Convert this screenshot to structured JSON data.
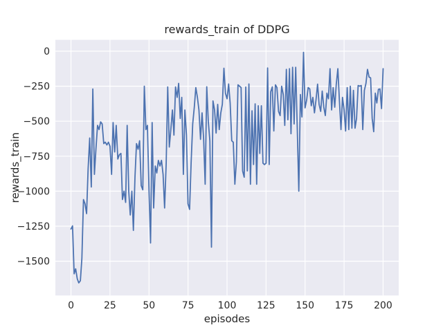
{
  "figure": {
    "title": "rewards_train of DDPG",
    "xlabel": "episodes",
    "ylabel": "rewards_train"
  },
  "style": {
    "figure_background": "#ffffff",
    "axes_background": "#eaeaf2",
    "grid_color": "#ffffff",
    "line_color": "#4c72b0",
    "text_color": "#262626"
  },
  "chart_data": {
    "type": "line",
    "title": "rewards_train of DDPG",
    "xlabel": "episodes",
    "ylabel": "rewards_train",
    "grid": true,
    "legend": "none",
    "xlim": [
      -10,
      210
    ],
    "ylim": [
      -1745,
      81
    ],
    "x_tick_values": [
      0,
      25,
      50,
      75,
      100,
      125,
      150,
      175,
      200
    ],
    "x_tick_labels": [
      "0",
      "25",
      "50",
      "75",
      "100",
      "125",
      "150",
      "175",
      "200"
    ],
    "y_tick_values": [
      0,
      -250,
      -500,
      -750,
      -1000,
      -1250,
      -1500
    ],
    "y_tick_labels": [
      "0",
      "−250",
      "−500",
      "−750",
      "−1000",
      "−1250",
      "−1500"
    ],
    "series": [
      {
        "name": "rewards_train",
        "x_start": 0,
        "x_step": 1,
        "values": [
          -1270,
          -1248,
          -1590,
          -1555,
          -1625,
          -1655,
          -1640,
          -1480,
          -1060,
          -1090,
          -1160,
          -840,
          -620,
          -970,
          -270,
          -880,
          -700,
          -530,
          -560,
          -505,
          -520,
          -660,
          -650,
          -670,
          -650,
          -680,
          -880,
          -510,
          -720,
          -530,
          -770,
          -740,
          -730,
          -1060,
          -1000,
          -1080,
          -530,
          -1000,
          -1170,
          -1000,
          -1280,
          -900,
          -660,
          -700,
          -640,
          -960,
          -990,
          -250,
          -560,
          -530,
          -1000,
          -1370,
          -510,
          -1120,
          -820,
          -870,
          -780,
          -820,
          -780,
          -880,
          -1120,
          -800,
          -255,
          -685,
          -560,
          -420,
          -600,
          -255,
          -330,
          -230,
          -480,
          -330,
          -880,
          -420,
          -600,
          -1090,
          -1130,
          -800,
          -520,
          -400,
          -260,
          -330,
          -420,
          -630,
          -440,
          -630,
          -950,
          -254,
          -500,
          -640,
          -1400,
          -355,
          -420,
          -585,
          -380,
          -560,
          -440,
          -380,
          -122,
          -300,
          -340,
          -234,
          -370,
          -640,
          -650,
          -950,
          -790,
          -240,
          -250,
          -260,
          -855,
          -900,
          -256,
          -855,
          -234,
          -950,
          -426,
          -810,
          -376,
          -950,
          -390,
          -730,
          -390,
          -800,
          -810,
          -800,
          -120,
          -810,
          -290,
          -255,
          -570,
          -240,
          -260,
          -430,
          -460,
          -250,
          -310,
          -530,
          -130,
          -490,
          -125,
          -590,
          -115,
          -520,
          -115,
          -560,
          -1000,
          -310,
          -470,
          -8,
          -405,
          -350,
          -260,
          -270,
          -390,
          -330,
          -440,
          -350,
          -235,
          -380,
          -430,
          -285,
          -400,
          -460,
          -300,
          -340,
          -125,
          -420,
          -260,
          -400,
          -236,
          -125,
          -350,
          -560,
          -330,
          -420,
          -570,
          -260,
          -560,
          -250,
          -550,
          -280,
          -550,
          -480,
          -245,
          -250,
          -245,
          -560,
          -280,
          -230,
          -130,
          -185,
          -190,
          -480,
          -575,
          -300,
          -370,
          -272,
          -270,
          -410,
          -125
        ]
      }
    ]
  }
}
